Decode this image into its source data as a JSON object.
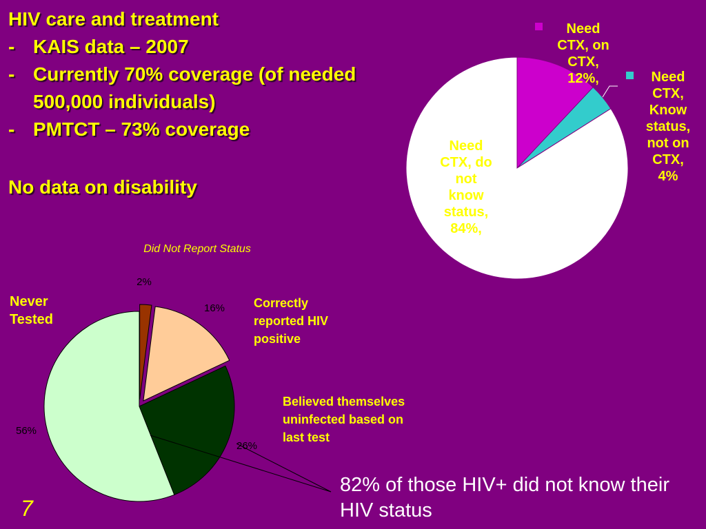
{
  "slide": {
    "title": "HIV care and treatment",
    "bullets": [
      "KAIS data – 2007",
      "Currently 70% coverage (of needed 500,000 individuals)",
      "PMTCT – 73% coverage"
    ],
    "bullet_marker": "-",
    "no_data_text": "No data on disability",
    "page_number": "7",
    "conclusion": "82% of those HIV+ did not know their HIV status"
  },
  "chart_data": [
    {
      "type": "pie",
      "title": "",
      "slices": [
        {
          "label_lines": [
            "Need",
            "CTX, on",
            "CTX,",
            "12%,"
          ],
          "value": 12,
          "color": "#CC00CC"
        },
        {
          "label_lines": [
            "Need",
            "CTX,",
            "Know",
            "status,",
            "not on",
            "CTX,",
            "4%"
          ],
          "value": 4,
          "color": "#33CCCC"
        },
        {
          "label_lines": [
            "Need",
            "CTX, do",
            "not",
            "know",
            "status,",
            "84%,"
          ],
          "value": 84,
          "color": "#FFFFFF"
        }
      ],
      "legend_markers": true
    },
    {
      "type": "pie",
      "title": "Did Not Report Status",
      "slices": [
        {
          "value": 2,
          "value_label": "2%",
          "color": "#993300",
          "category": ""
        },
        {
          "value": 16,
          "value_label": "16%",
          "color": "#FFCC99",
          "category": "Correctly reported HIV positive"
        },
        {
          "value": 26,
          "value_label": "26%",
          "color": "#003300",
          "category": "Believed themselves uninfected based on last test"
        },
        {
          "value": 56,
          "value_label": "56%",
          "color": "#CCFFCC",
          "category": "Never Tested"
        }
      ],
      "category_label_lines": {
        "never_tested": [
          "Never",
          "Tested"
        ],
        "correctly_reported": [
          "Correctly",
          "reported HIV",
          "positive"
        ],
        "believed_uninfected": [
          "Believed themselves",
          "uninfected based on",
          "last test"
        ]
      },
      "colors": {
        "labels": "#FFFF00",
        "value_labels": "#000000"
      }
    }
  ]
}
